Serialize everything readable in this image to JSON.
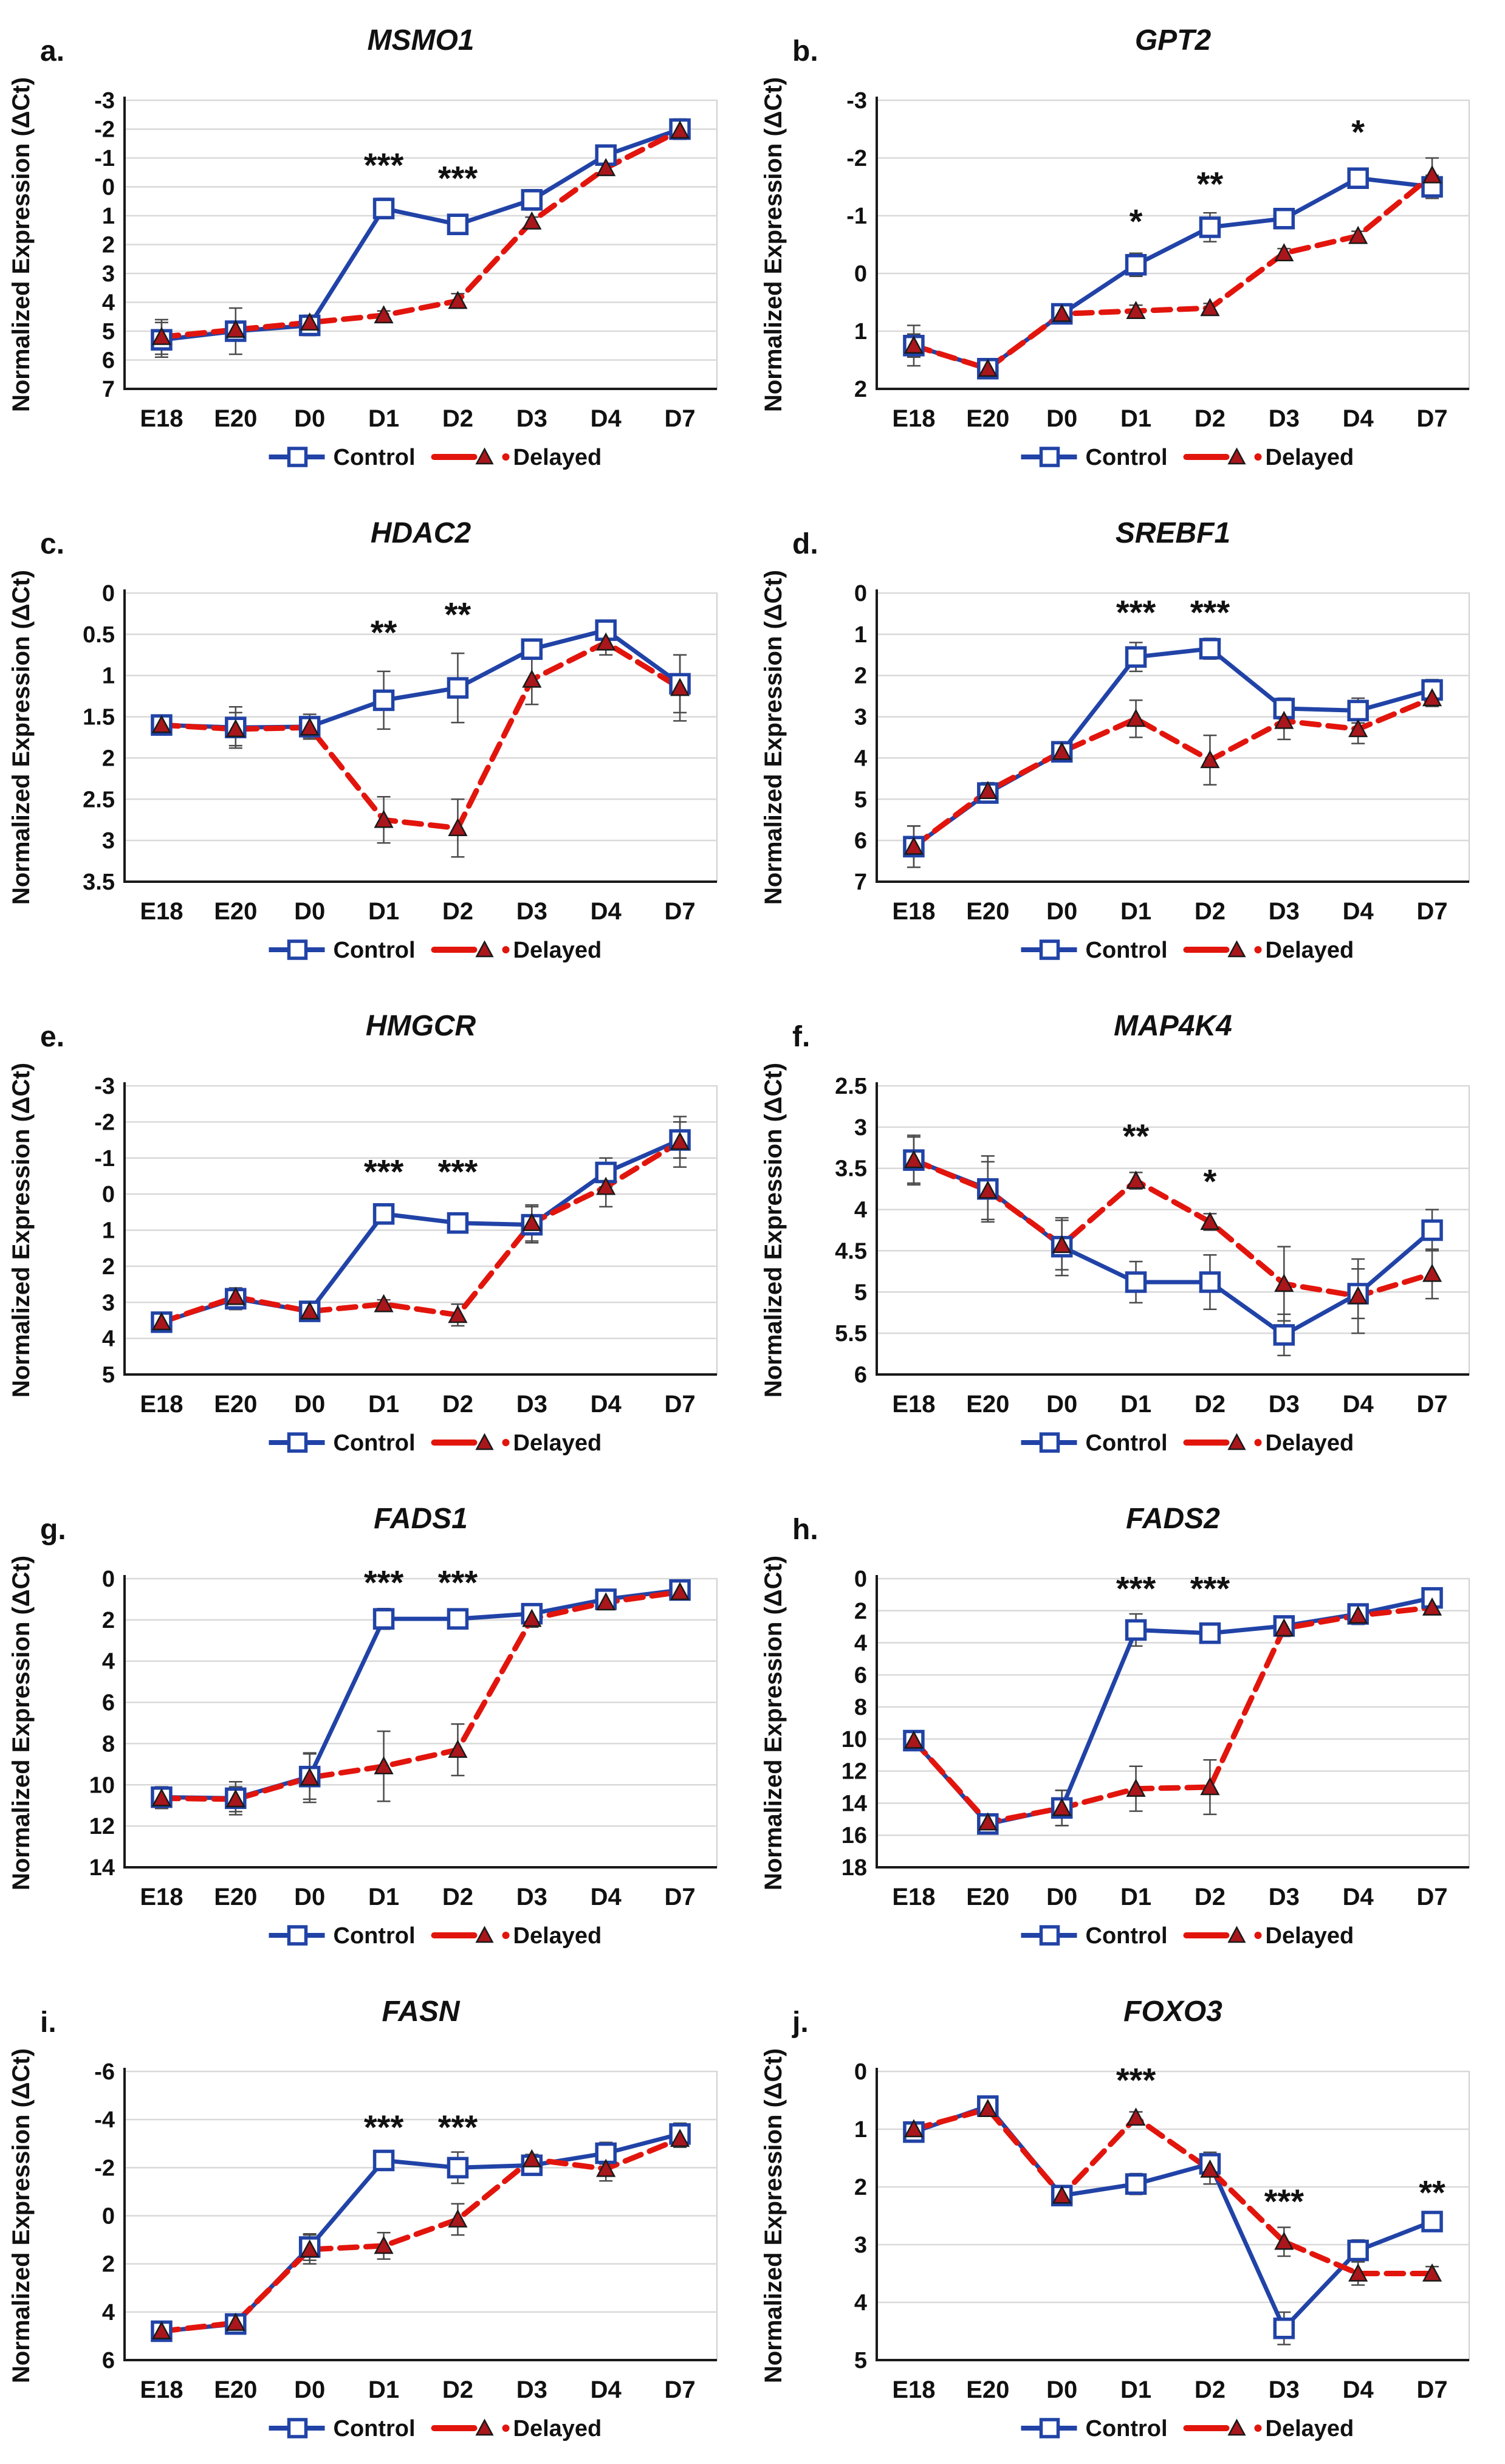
{
  "figure": {
    "ylabel": "Normalized Expression (ΔCt)",
    "categories": [
      "E18",
      "E20",
      "D0",
      "D1",
      "D2",
      "D3",
      "D4",
      "D7"
    ],
    "legend": {
      "control": "Control",
      "delayed": "Delayed"
    }
  },
  "colors": {
    "control_line": "#2143A7",
    "delayed_line": "#E2150D",
    "delayed_marker_fill": "#A9161B",
    "marker_fill": "#ffffff",
    "error_bar": "#4a4a4a",
    "grid": "#d9d9d9",
    "axis": "#1a1a1a",
    "text": "#111111",
    "background": "#ffffff"
  },
  "chart_data": [
    {
      "panel": "a.",
      "type": "line",
      "title": "MSMO1",
      "ylabel": "Normalized Expression (ΔCt)",
      "ylim": [
        -3,
        7
      ],
      "yticks": [
        -3,
        -2,
        -1,
        0,
        1,
        2,
        3,
        4,
        5,
        6,
        7
      ],
      "series": [
        {
          "name": "Control",
          "values": [
            5.3,
            5.0,
            4.8,
            0.75,
            1.3,
            0.45,
            -1.1,
            -2.0
          ],
          "err": [
            0.6,
            0.8,
            0.35,
            0.35,
            0.3,
            0.35,
            0.3,
            0.35
          ]
        },
        {
          "name": "Delayed",
          "values": [
            5.2,
            4.95,
            4.7,
            4.45,
            3.95,
            1.2,
            -0.65,
            -1.95
          ],
          "err": [
            0.6,
            0.2,
            0.2,
            0.15,
            0.25,
            0.15,
            0.15,
            0.3
          ]
        }
      ],
      "stars": [
        {
          "cat": "D1",
          "y": -0.35,
          "text": "***"
        },
        {
          "cat": "D2",
          "y": 0.1,
          "text": "***"
        }
      ]
    },
    {
      "panel": "b.",
      "type": "line",
      "title": "GPT2",
      "ylabel": "Normalized Expression (ΔCt)",
      "ylim": [
        -3,
        2
      ],
      "yticks": [
        -3,
        -2,
        -1,
        0,
        1,
        2
      ],
      "series": [
        {
          "name": "Control",
          "values": [
            1.25,
            1.65,
            0.7,
            -0.15,
            -0.8,
            -0.95,
            -1.65,
            -1.5
          ],
          "err": [
            0.35,
            0.15,
            0.15,
            0.2,
            0.25,
            0.15,
            0.15,
            0.2
          ]
        },
        {
          "name": "Delayed",
          "values": [
            1.25,
            1.65,
            0.7,
            0.65,
            0.6,
            -0.35,
            -0.65,
            -1.7
          ],
          "err": [
            0.2,
            0.1,
            0.1,
            0.1,
            0.08,
            0.08,
            0.08,
            0.3
          ]
        }
      ],
      "stars": [
        {
          "cat": "D1",
          "y": -0.7,
          "text": "*"
        },
        {
          "cat": "D2",
          "y": -1.35,
          "text": "**"
        },
        {
          "cat": "D4",
          "y": -2.25,
          "text": "*"
        }
      ]
    },
    {
      "panel": "c.",
      "type": "line",
      "title": "HDAC2",
      "ylabel": "Normalized Expression (ΔCt)",
      "ylim": [
        0,
        3.5
      ],
      "yticks": [
        0,
        0.5,
        1,
        1.5,
        2,
        2.5,
        3,
        3.5
      ],
      "series": [
        {
          "name": "Control",
          "values": [
            1.6,
            1.63,
            1.62,
            1.3,
            1.15,
            0.68,
            0.45,
            1.1
          ],
          "err": [
            0.12,
            0.25,
            0.15,
            0.35,
            0.42,
            0.12,
            0.1,
            0.35
          ]
        },
        {
          "name": "Delayed",
          "values": [
            1.6,
            1.65,
            1.63,
            2.75,
            2.85,
            1.05,
            0.6,
            1.15
          ],
          "err": [
            0.1,
            0.2,
            0.12,
            0.28,
            0.35,
            0.3,
            0.15,
            0.4
          ]
        }
      ],
      "stars": [
        {
          "cat": "D1",
          "y": 0.62,
          "text": "**"
        },
        {
          "cat": "D2",
          "y": 0.4,
          "text": "**"
        }
      ]
    },
    {
      "panel": "d.",
      "type": "line",
      "title": "SREBF1",
      "ylabel": "Normalized Expression (ΔCt)",
      "ylim": [
        0,
        7
      ],
      "yticks": [
        0,
        1,
        2,
        3,
        4,
        5,
        6,
        7
      ],
      "series": [
        {
          "name": "Control",
          "values": [
            6.15,
            4.85,
            3.85,
            1.55,
            1.35,
            2.8,
            2.85,
            2.35
          ],
          "err": [
            0.5,
            0.2,
            0.2,
            0.35,
            0.25,
            0.25,
            0.3,
            0.25
          ]
        },
        {
          "name": "Delayed",
          "values": [
            6.15,
            4.8,
            3.85,
            3.05,
            4.05,
            3.1,
            3.3,
            2.55
          ],
          "err": [
            0.5,
            0.2,
            0.15,
            0.45,
            0.6,
            0.45,
            0.35,
            0.2
          ]
        }
      ],
      "stars": [
        {
          "cat": "D1",
          "y": 0.75,
          "text": "***"
        },
        {
          "cat": "D2",
          "y": 0.75,
          "text": "***"
        }
      ]
    },
    {
      "panel": "e.",
      "type": "line",
      "title": "HMGCR",
      "ylabel": "Normalized Expression (ΔCt)",
      "ylim": [
        -3,
        5
      ],
      "yticks": [
        -3,
        -2,
        -1,
        0,
        1,
        2,
        3,
        4,
        5
      ],
      "series": [
        {
          "name": "Control",
          "values": [
            3.55,
            2.9,
            3.25,
            0.55,
            0.8,
            0.85,
            -0.6,
            -1.5
          ],
          "err": [
            0.2,
            0.3,
            0.2,
            0.2,
            0.25,
            0.5,
            0.4,
            0.5
          ]
        },
        {
          "name": "Delayed",
          "values": [
            3.55,
            2.85,
            3.25,
            3.05,
            3.35,
            0.8,
            -0.2,
            -1.45
          ],
          "err": [
            0.2,
            0.2,
            0.15,
            0.12,
            0.3,
            0.5,
            0.55,
            0.7
          ]
        }
      ],
      "stars": [
        {
          "cat": "D1",
          "y": -0.3,
          "text": "***"
        },
        {
          "cat": "D2",
          "y": -0.3,
          "text": "***"
        }
      ]
    },
    {
      "panel": "f.",
      "type": "line",
      "title": "MAP4K4",
      "ylabel": "Normalized Expression (ΔCt)",
      "ylim": [
        2.5,
        6
      ],
      "yticks": [
        2.5,
        3,
        3.5,
        4,
        4.5,
        5,
        5.5,
        6
      ],
      "series": [
        {
          "name": "Control",
          "values": [
            3.4,
            3.75,
            4.45,
            4.88,
            4.88,
            5.52,
            5.02,
            4.25
          ],
          "err": [
            0.28,
            0.4,
            0.35,
            0.25,
            0.33,
            0.25,
            0.3,
            0.25
          ]
        },
        {
          "name": "Delayed",
          "values": [
            3.4,
            3.77,
            4.43,
            3.65,
            4.15,
            4.9,
            5.05,
            4.78
          ],
          "err": [
            0.3,
            0.35,
            0.3,
            0.1,
            0.1,
            0.45,
            0.45,
            0.3
          ]
        }
      ],
      "stars": [
        {
          "cat": "D1",
          "y": 3.25,
          "text": "**"
        },
        {
          "cat": "D2",
          "y": 3.8,
          "text": "*"
        }
      ]
    },
    {
      "panel": "g.",
      "type": "line",
      "title": "FADS1",
      "ylabel": "Normalized Expression (ΔCt)",
      "ylim": [
        0,
        14
      ],
      "yticks": [
        0,
        2,
        4,
        6,
        8,
        10,
        12,
        14
      ],
      "series": [
        {
          "name": "Control",
          "values": [
            10.6,
            10.65,
            9.6,
            1.95,
            1.95,
            1.7,
            1.0,
            0.55
          ],
          "err": [
            0.5,
            0.8,
            1.1,
            0.5,
            0.35,
            0.4,
            0.3,
            0.35
          ]
        },
        {
          "name": "Delayed",
          "values": [
            10.65,
            10.7,
            9.65,
            9.1,
            8.3,
            1.95,
            1.15,
            0.65
          ],
          "err": [
            0.5,
            0.6,
            1.2,
            1.7,
            1.25,
            0.4,
            0.3,
            0.3
          ]
        }
      ],
      "stars": [
        {
          "cat": "D1",
          "y": 0.75,
          "text": "***"
        },
        {
          "cat": "D2",
          "y": 0.75,
          "text": "***"
        }
      ]
    },
    {
      "panel": "h.",
      "type": "line",
      "title": "FADS2",
      "ylabel": "Normalized Expression (ΔCt)",
      "ylim": [
        0,
        18
      ],
      "yticks": [
        0,
        2,
        4,
        6,
        8,
        10,
        12,
        14,
        16,
        18
      ],
      "series": [
        {
          "name": "Control",
          "values": [
            10.1,
            15.3,
            14.3,
            3.2,
            3.4,
            2.95,
            2.2,
            1.2
          ],
          "err": [
            0.6,
            0.5,
            1.1,
            1.0,
            0.55,
            0.55,
            0.6,
            0.55
          ]
        },
        {
          "name": "Delayed",
          "values": [
            10.1,
            15.2,
            14.3,
            13.1,
            13.0,
            3.1,
            2.3,
            1.8
          ],
          "err": [
            0.6,
            0.5,
            1.1,
            1.4,
            1.7,
            0.5,
            0.55,
            0.3
          ]
        }
      ],
      "stars": [
        {
          "cat": "D1",
          "y": 1.35,
          "text": "***"
        },
        {
          "cat": "D2",
          "y": 1.35,
          "text": "***"
        }
      ]
    },
    {
      "panel": "i.",
      "type": "line",
      "title": "FASN",
      "ylabel": "Normalized Expression (ΔCt)",
      "ylim": [
        -6,
        6
      ],
      "yticks": [
        -6,
        -4,
        -2,
        0,
        2,
        4,
        6
      ],
      "series": [
        {
          "name": "Control",
          "values": [
            4.8,
            4.5,
            1.3,
            -2.3,
            -2.0,
            -2.1,
            -2.6,
            -3.4
          ],
          "err": [
            0.35,
            0.4,
            0.55,
            0.4,
            0.65,
            0.4,
            0.45,
            0.45
          ]
        },
        {
          "name": "Delayed",
          "values": [
            4.8,
            4.45,
            1.4,
            1.25,
            0.15,
            -2.35,
            -1.95,
            -3.2
          ],
          "err": [
            0.3,
            0.35,
            0.6,
            0.55,
            0.65,
            0.2,
            0.5,
            0.35
          ]
        }
      ],
      "stars": [
        {
          "cat": "D1",
          "y": -3.2,
          "text": "***"
        },
        {
          "cat": "D2",
          "y": -3.2,
          "text": "***"
        }
      ]
    },
    {
      "panel": "j.",
      "type": "line",
      "title": "FOXO3",
      "ylabel": "Normalized Expression (ΔCt)",
      "ylim": [
        0,
        5
      ],
      "yticks": [
        0,
        1,
        2,
        3,
        4,
        5
      ],
      "series": [
        {
          "name": "Control",
          "values": [
            1.05,
            0.6,
            2.15,
            1.95,
            1.6,
            4.45,
            3.1,
            2.6
          ],
          "err": [
            0.12,
            0.1,
            0.1,
            0.18,
            0.2,
            0.28,
            0.18,
            0.1
          ]
        },
        {
          "name": "Delayed",
          "values": [
            1.0,
            0.65,
            2.15,
            0.8,
            1.7,
            2.95,
            3.5,
            3.5
          ],
          "err": [
            0.1,
            0.08,
            0.1,
            0.1,
            0.25,
            0.25,
            0.2,
            0.12
          ]
        }
      ],
      "stars": [
        {
          "cat": "D1",
          "y": 0.35,
          "text": "***"
        },
        {
          "cat": "D3",
          "y": 2.45,
          "text": "***"
        },
        {
          "cat": "D7",
          "y": 2.3,
          "text": "**"
        }
      ]
    }
  ]
}
